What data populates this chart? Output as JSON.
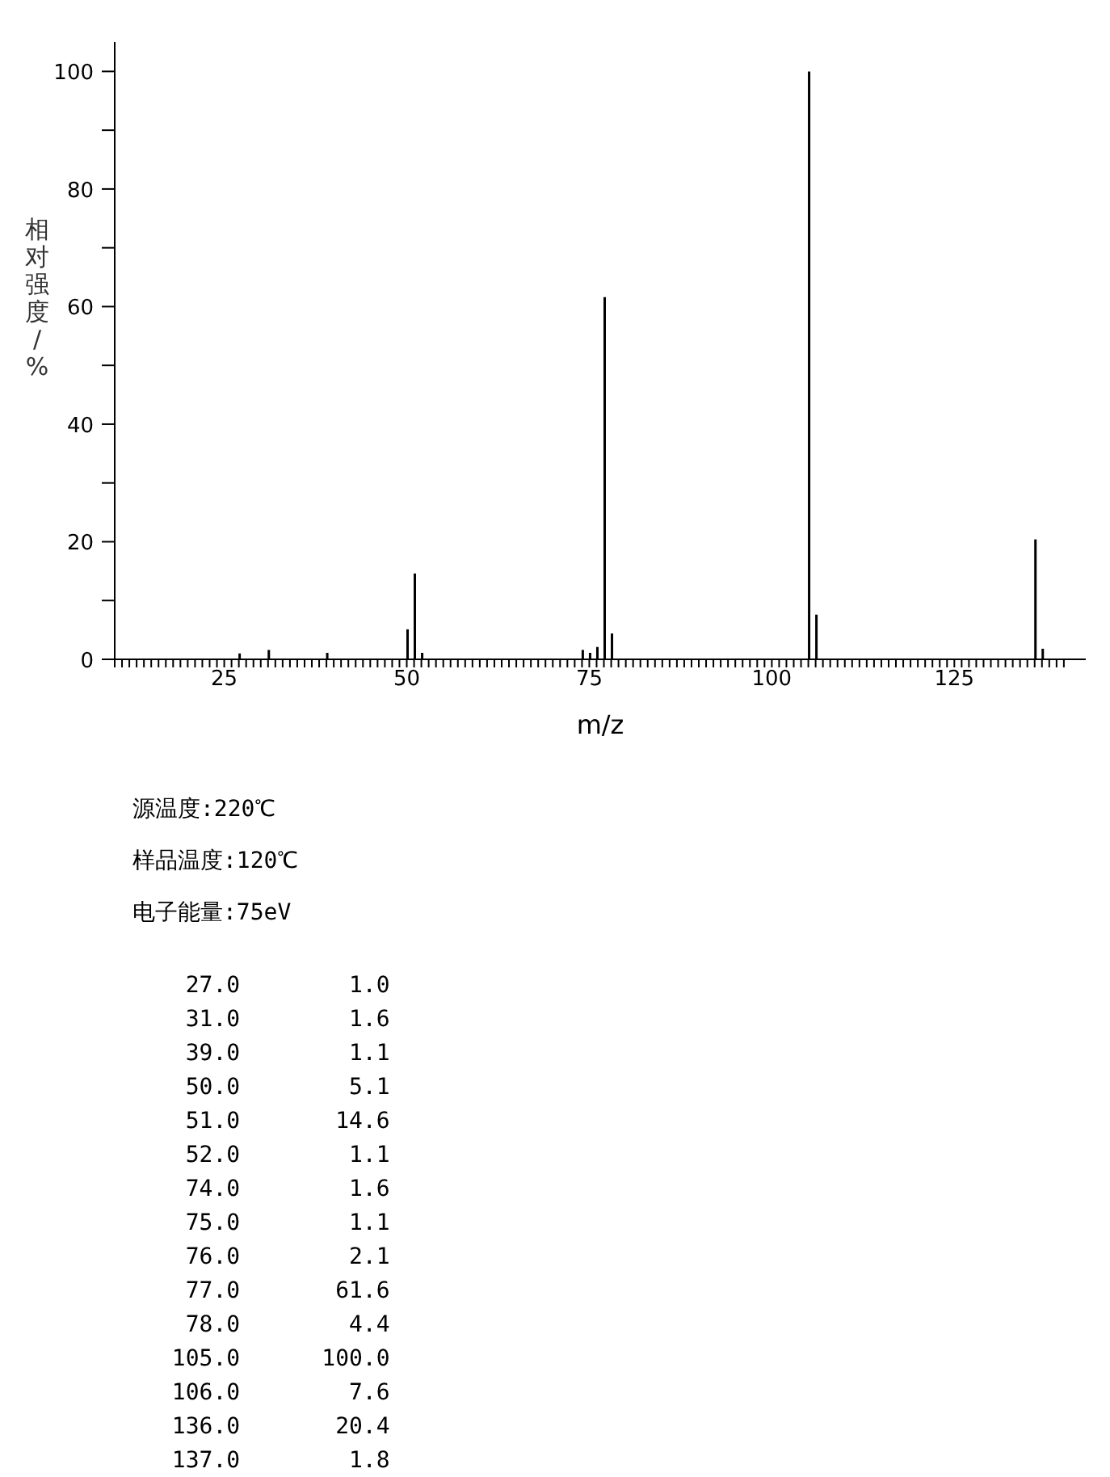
{
  "chart_data": {
    "type": "bar",
    "xlabel": "m/z",
    "ylabel": "相对强度/%",
    "x": [
      27,
      31,
      39,
      50,
      51,
      52,
      74,
      75,
      76,
      77,
      78,
      105,
      106,
      136,
      137
    ],
    "values": [
      1.0,
      1.6,
      1.1,
      5.1,
      14.6,
      1.1,
      1.6,
      1.1,
      2.1,
      61.6,
      4.4,
      100.0,
      7.6,
      20.4,
      1.8
    ],
    "color": "#000000",
    "xlim": [
      10,
      143
    ],
    "xticks": [
      {
        "value": 10,
        "label": null
      },
      {
        "value": 11,
        "label": null
      },
      {
        "value": 12,
        "label": null
      },
      {
        "value": 13,
        "label": null
      },
      {
        "value": 14,
        "label": null
      },
      {
        "value": 15,
        "label": null
      },
      {
        "value": 16,
        "label": null
      },
      {
        "value": 17,
        "label": null
      },
      {
        "value": 18,
        "label": null
      },
      {
        "value": 19,
        "label": null
      },
      {
        "value": 20,
        "label": null
      },
      {
        "value": 21,
        "label": null
      },
      {
        "value": 22,
        "label": null
      },
      {
        "value": 23,
        "label": null
      },
      {
        "value": 24,
        "label": null
      },
      25,
      {
        "value": 26,
        "label": null
      },
      {
        "value": 27,
        "label": null
      },
      {
        "value": 28,
        "label": null
      },
      {
        "value": 29,
        "label": null
      },
      {
        "value": 30,
        "label": null
      },
      {
        "value": 31,
        "label": null
      },
      {
        "value": 32,
        "label": null
      },
      {
        "value": 33,
        "label": null
      },
      {
        "value": 34,
        "label": null
      },
      {
        "value": 35,
        "label": null
      },
      {
        "value": 36,
        "label": null
      },
      {
        "value": 37,
        "label": null
      },
      {
        "value": 38,
        "label": null
      },
      {
        "value": 39,
        "label": null
      },
      {
        "value": 40,
        "label": null
      },
      {
        "value": 41,
        "label": null
      },
      {
        "value": 42,
        "label": null
      },
      {
        "value": 43,
        "label": null
      },
      {
        "value": 44,
        "label": null
      },
      {
        "value": 45,
        "label": null
      },
      {
        "value": 46,
        "label": null
      },
      {
        "value": 47,
        "label": null
      },
      {
        "value": 48,
        "label": null
      },
      {
        "value": 49,
        "label": null
      },
      50,
      {
        "value": 51,
        "label": null
      },
      {
        "value": 52,
        "label": null
      },
      {
        "value": 53,
        "label": null
      },
      {
        "value": 54,
        "label": null
      },
      {
        "value": 55,
        "label": null
      },
      {
        "value": 56,
        "label": null
      },
      {
        "value": 57,
        "label": null
      },
      {
        "value": 58,
        "label": null
      },
      {
        "value": 59,
        "label": null
      },
      {
        "value": 60,
        "label": null
      },
      {
        "value": 61,
        "label": null
      },
      {
        "value": 62,
        "label": null
      },
      {
        "value": 63,
        "label": null
      },
      {
        "value": 64,
        "label": null
      },
      {
        "value": 65,
        "label": null
      },
      {
        "value": 66,
        "label": null
      },
      {
        "value": 67,
        "label": null
      },
      {
        "value": 68,
        "label": null
      },
      {
        "value": 69,
        "label": null
      },
      {
        "value": 70,
        "label": null
      },
      {
        "value": 71,
        "label": null
      },
      {
        "value": 72,
        "label": null
      },
      {
        "value": 73,
        "label": null
      },
      {
        "value": 74,
        "label": null
      },
      75,
      {
        "value": 76,
        "label": null
      },
      {
        "value": 77,
        "label": null
      },
      {
        "value": 78,
        "label": null
      },
      {
        "value": 79,
        "label": null
      },
      {
        "value": 80,
        "label": null
      },
      {
        "value": 81,
        "label": null
      },
      {
        "value": 82,
        "label": null
      },
      {
        "value": 83,
        "label": null
      },
      {
        "value": 84,
        "label": null
      },
      {
        "value": 85,
        "label": null
      },
      {
        "value": 86,
        "label": null
      },
      {
        "value": 87,
        "label": null
      },
      {
        "value": 88,
        "label": null
      },
      {
        "value": 89,
        "label": null
      },
      {
        "value": 90,
        "label": null
      },
      {
        "value": 91,
        "label": null
      },
      {
        "value": 92,
        "label": null
      },
      {
        "value": 93,
        "label": null
      },
      {
        "value": 94,
        "label": null
      },
      {
        "value": 95,
        "label": null
      },
      {
        "value": 96,
        "label": null
      },
      {
        "value": 97,
        "label": null
      },
      {
        "value": 98,
        "label": null
      },
      {
        "value": 99,
        "label": null
      },
      100,
      {
        "value": 101,
        "label": null
      },
      {
        "value": 102,
        "label": null
      },
      {
        "value": 103,
        "label": null
      },
      {
        "value": 104,
        "label": null
      },
      {
        "value": 105,
        "label": null
      },
      {
        "value": 106,
        "label": null
      },
      {
        "value": 107,
        "label": null
      },
      {
        "value": 108,
        "label": null
      },
      {
        "value": 109,
        "label": null
      },
      {
        "value": 110,
        "label": null
      },
      {
        "value": 111,
        "label": null
      },
      {
        "value": 112,
        "label": null
      },
      {
        "value": 113,
        "label": null
      },
      {
        "value": 114,
        "label": null
      },
      {
        "value": 115,
        "label": null
      },
      {
        "value": 116,
        "label": null
      },
      {
        "value": 117,
        "label": null
      },
      {
        "value": 118,
        "label": null
      },
      {
        "value": 119,
        "label": null
      },
      {
        "value": 120,
        "label": null
      },
      {
        "value": 121,
        "label": null
      },
      {
        "value": 122,
        "label": null
      },
      {
        "value": 123,
        "label": null
      },
      {
        "value": 124,
        "label": null
      },
      125,
      {
        "value": 126,
        "label": null
      },
      {
        "value": 127,
        "label": null
      },
      {
        "value": 128,
        "label": null
      },
      {
        "value": 129,
        "label": null
      },
      {
        "value": 130,
        "label": null
      },
      {
        "value": 131,
        "label": null
      },
      {
        "value": 132,
        "label": null
      },
      {
        "value": 133,
        "label": null
      },
      {
        "value": 134,
        "label": null
      },
      {
        "value": 135,
        "label": null
      },
      {
        "value": 136,
        "label": null
      },
      {
        "value": 137,
        "label": null
      },
      {
        "value": 138,
        "label": null
      },
      {
        "value": 139,
        "label": null
      },
      {
        "value": 140,
        "label": null
      }
    ],
    "ylim": [
      0,
      105
    ],
    "yticks": [
      0,
      {
        "value": 10,
        "label": null
      },
      20,
      {
        "value": 30,
        "label": null
      },
      40,
      {
        "value": 50,
        "label": null
      },
      60,
      {
        "value": 70,
        "label": null
      },
      80,
      {
        "value": 90,
        "label": null
      },
      100
    ],
    "annotations": [
      "源温度:220℃",
      "样品温度:120℃",
      "电子能量:75eV",
      "  27.0        1.0",
      "  31.0        1.6",
      "  39.0        1.1",
      "  50.0        5.1",
      "  51.0       14.6",
      "  52.0        1.1",
      "  74.0        1.6",
      "  75.0        1.1",
      "  76.0        2.1",
      "  77.0       61.6",
      "  78.0        4.4",
      " 105.0      100.0",
      " 106.0        7.6",
      " 136.0       20.4",
      " 137.0        1.8"
    ]
  }
}
